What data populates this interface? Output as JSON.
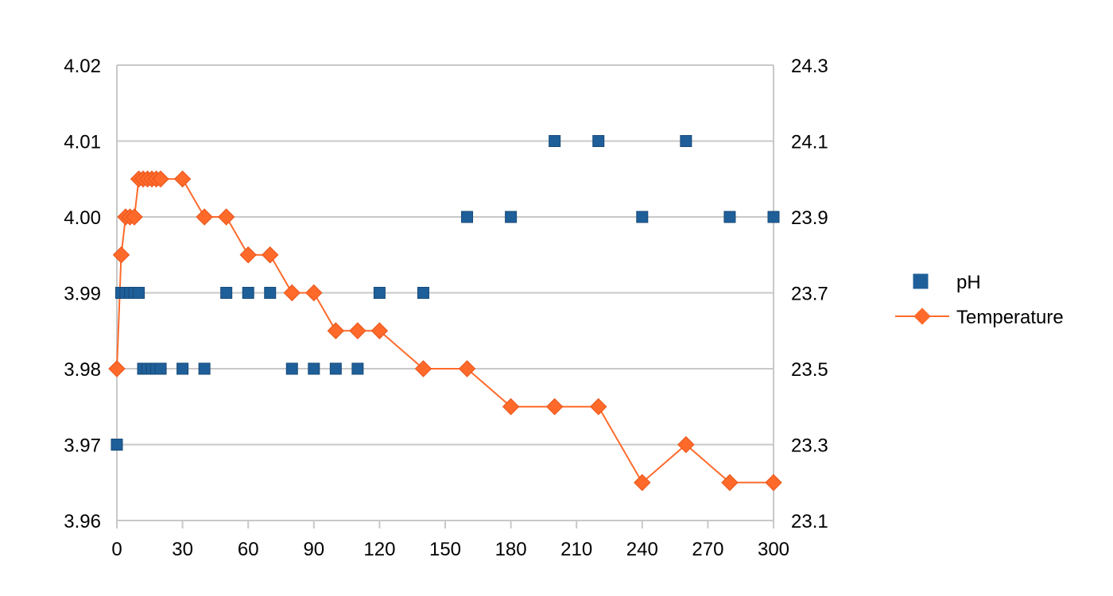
{
  "chart_data": {
    "type": "scatter",
    "title": "",
    "xlabel": "",
    "ylabel": "",
    "y2label": "",
    "xlim": [
      0,
      300
    ],
    "ylim": [
      3.96,
      4.02
    ],
    "y2lim": [
      23.1,
      24.3
    ],
    "grid": true,
    "legend_position": "right",
    "x_ticks": [
      "0",
      "30",
      "60",
      "90",
      "120",
      "150",
      "180",
      "210",
      "240",
      "270",
      "300"
    ],
    "y_ticks": [
      "3.96",
      "3.97",
      "3.98",
      "3.99",
      "4.00",
      "4.01",
      "4.02"
    ],
    "y2_ticks": [
      "23.1",
      "23.3",
      "23.5",
      "23.7",
      "23.9",
      "24.1",
      "24.3"
    ],
    "series": [
      {
        "name": "pH",
        "axis": "left",
        "marker": "square",
        "line": false,
        "color": "#1f5f99",
        "points": [
          [
            0,
            3.97
          ],
          [
            2,
            3.99
          ],
          [
            4,
            3.99
          ],
          [
            6,
            3.99
          ],
          [
            8,
            3.99
          ],
          [
            10,
            3.99
          ],
          [
            12,
            3.98
          ],
          [
            14,
            3.98
          ],
          [
            16,
            3.98
          ],
          [
            18,
            3.98
          ],
          [
            20,
            3.98
          ],
          [
            30,
            3.98
          ],
          [
            40,
            3.98
          ],
          [
            50,
            3.99
          ],
          [
            60,
            3.99
          ],
          [
            70,
            3.99
          ],
          [
            80,
            3.98
          ],
          [
            90,
            3.98
          ],
          [
            100,
            3.98
          ],
          [
            110,
            3.98
          ],
          [
            120,
            3.99
          ],
          [
            140,
            3.99
          ],
          [
            160,
            4.0
          ],
          [
            180,
            4.0
          ],
          [
            200,
            4.01
          ],
          [
            220,
            4.01
          ],
          [
            240,
            4.0
          ],
          [
            260,
            4.01
          ],
          [
            280,
            4.0
          ],
          [
            300,
            4.0
          ]
        ]
      },
      {
        "name": "Temperature",
        "axis": "right",
        "marker": "diamond",
        "line": true,
        "color": "#ff6a2b",
        "points": [
          [
            0,
            23.5
          ],
          [
            2,
            23.8
          ],
          [
            4,
            23.9
          ],
          [
            6,
            23.9
          ],
          [
            8,
            23.9
          ],
          [
            10,
            24.0
          ],
          [
            12,
            24.0
          ],
          [
            14,
            24.0
          ],
          [
            16,
            24.0
          ],
          [
            18,
            24.0
          ],
          [
            20,
            24.0
          ],
          [
            30,
            24.0
          ],
          [
            40,
            23.9
          ],
          [
            50,
            23.9
          ],
          [
            60,
            23.8
          ],
          [
            70,
            23.8
          ],
          [
            80,
            23.7
          ],
          [
            90,
            23.7
          ],
          [
            100,
            23.6
          ],
          [
            110,
            23.6
          ],
          [
            120,
            23.6
          ],
          [
            140,
            23.5
          ],
          [
            160,
            23.5
          ],
          [
            180,
            23.4
          ],
          [
            200,
            23.4
          ],
          [
            220,
            23.4
          ],
          [
            240,
            23.2
          ],
          [
            260,
            23.3
          ],
          [
            280,
            23.2
          ],
          [
            300,
            23.2
          ]
        ]
      }
    ]
  }
}
